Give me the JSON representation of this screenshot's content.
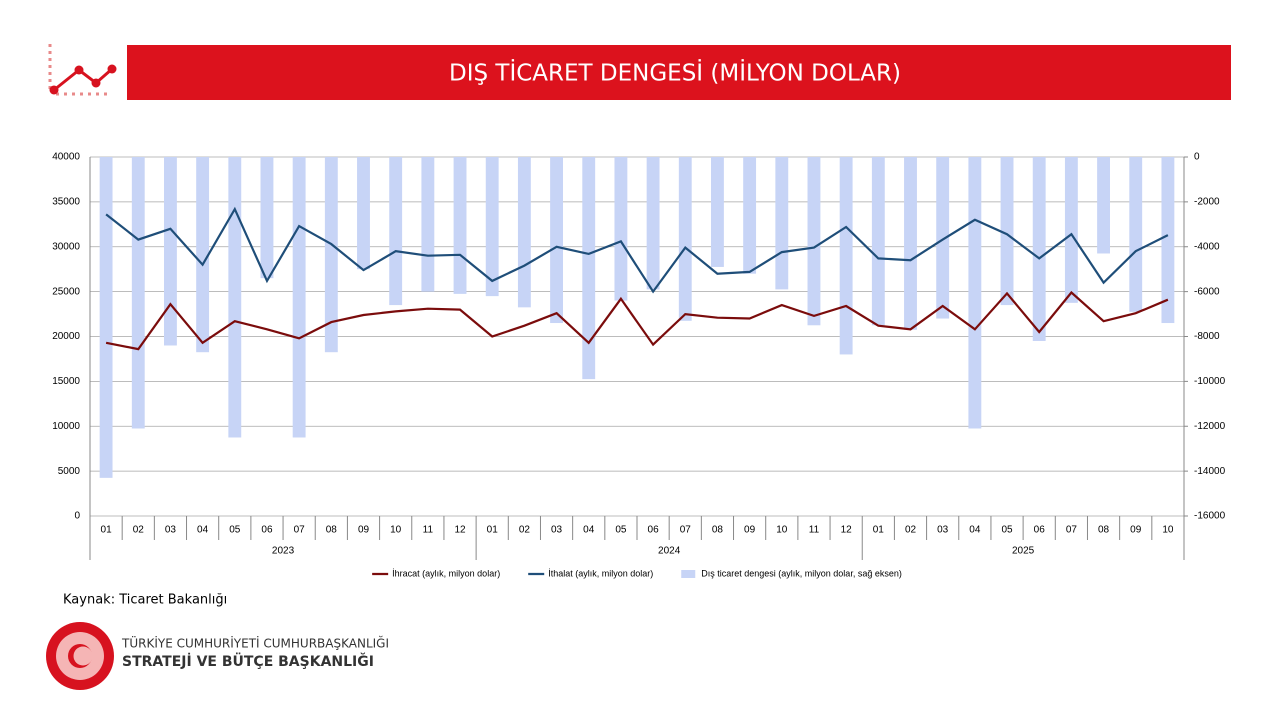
{
  "chart_data": {
    "type": "combo",
    "title": "DIŞ TİCARET DENGESİ (MİLYON DOLAR)",
    "categories": [
      "01",
      "02",
      "03",
      "04",
      "05",
      "06",
      "07",
      "08",
      "09",
      "10",
      "11",
      "12",
      "01",
      "02",
      "03",
      "04",
      "05",
      "06",
      "07",
      "08",
      "09",
      "10",
      "11",
      "12",
      "01",
      "02",
      "03",
      "04",
      "05",
      "06",
      "07",
      "08",
      "09",
      "10"
    ],
    "groups": [
      "2023",
      "2024",
      "2025"
    ],
    "ylim": [
      0,
      40000
    ],
    "yticks": [
      0,
      5000,
      10000,
      15000,
      20000,
      25000,
      30000,
      35000,
      40000
    ],
    "y2lim": [
      -16000,
      0
    ],
    "y2ticks": [
      -16000,
      -14000,
      -12000,
      -10000,
      -8000,
      -6000,
      -4000,
      -2000,
      0
    ],
    "grid": true,
    "legend": "bottom",
    "series": [
      {
        "name": "İhracat (aylık, milyon dolar)",
        "type": "line",
        "color": "#7b0c0c",
        "values": [
          19300,
          18600,
          23600,
          19300,
          21700,
          20800,
          19800,
          21600,
          22400,
          22800,
          23100,
          23000,
          20000,
          21200,
          22600,
          19300,
          24200,
          19100,
          22500,
          22100,
          22000,
          23500,
          22300,
          23400,
          21200,
          20800,
          23400,
          20800,
          24800,
          20500,
          24900,
          21700,
          22600,
          24100
        ]
      },
      {
        "name": "İthalat (aylık, milyon dolar)",
        "type": "line",
        "color": "#1f4e79",
        "values": [
          33600,
          30800,
          32000,
          28000,
          34200,
          26200,
          32300,
          30300,
          27400,
          29500,
          29000,
          29100,
          26200,
          27900,
          30000,
          29200,
          30600,
          25000,
          29900,
          27000,
          27200,
          29400,
          29900,
          32200,
          28700,
          28500,
          30800,
          33000,
          31400,
          28700,
          31400,
          26000,
          29500,
          31300
        ]
      },
      {
        "name": "Dış ticaret dengesi (aylık, milyon dolar, sağ eksen)",
        "type": "bar",
        "axis": "y2",
        "color": "#c7d4f6",
        "values": [
          -14300,
          -12100,
          -8400,
          -8700,
          -12500,
          -5400,
          -12500,
          -8700,
          -5000,
          -6600,
          -6000,
          -6100,
          -6200,
          -6700,
          -7400,
          -9900,
          -6400,
          -5900,
          -7300,
          -4900,
          -5200,
          -5900,
          -7500,
          -8800,
          -7500,
          -7700,
          -7200,
          -12100,
          -6600,
          -8200,
          -6500,
          -4300,
          -6900,
          -7400
        ]
      }
    ]
  },
  "footer": {
    "source": "Kaynak: Ticaret Bakanlığı",
    "org_line1": "TÜRKİYE CUMHURİYETİ CUMHURBAŞKANLIĞI",
    "org_line2": "STRATEJİ VE BÜTÇE BAŞKANLIĞI"
  }
}
